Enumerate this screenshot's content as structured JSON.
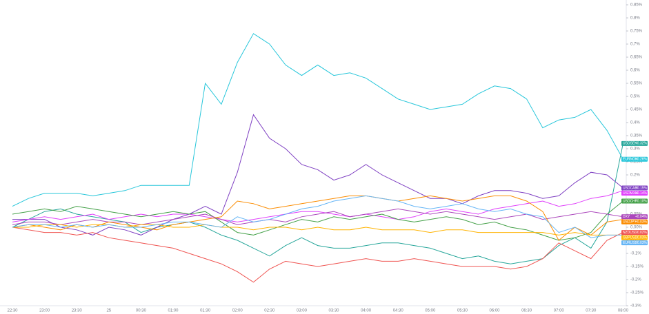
{
  "chart_data": {
    "type": "line",
    "categories": [
      "22:30",
      null,
      "23:00",
      null,
      "23:30",
      null,
      "25",
      null,
      "00:30",
      null,
      "01:00",
      null,
      "01:30",
      null,
      "02:00",
      null,
      "02:30",
      null,
      "03:00",
      null,
      "03:30",
      null,
      "04:00",
      null,
      "04:30",
      null,
      "05:00",
      null,
      "05:30",
      null,
      "06:00",
      null,
      "06:30",
      null,
      "07:00",
      null,
      "07:30",
      null,
      "08:00"
    ],
    "ylim": [
      -0.3,
      0.85
    ],
    "yticks": [
      {
        "value": 0.85,
        "label": "0.85%"
      },
      {
        "value": 0.8,
        "label": "0.8%"
      },
      {
        "value": 0.75,
        "label": "0.75%"
      },
      {
        "value": 0.7,
        "label": "0.7%"
      },
      {
        "value": 0.65,
        "label": "0.65%"
      },
      {
        "value": 0.6,
        "label": "0.6%"
      },
      {
        "value": 0.55,
        "label": "0.55%"
      },
      {
        "value": 0.5,
        "label": "0.5%"
      },
      {
        "value": 0.45,
        "label": "0.45%"
      },
      {
        "value": 0.4,
        "label": "0.4%"
      },
      {
        "value": 0.35,
        "label": "0.35%"
      },
      {
        "value": 0.3,
        "label": "0.3%"
      },
      {
        "value": 0.25,
        "label": "0.25%"
      },
      {
        "value": 0.2,
        "label": "0.2%"
      },
      {
        "value": 0.15,
        "label": "0.15%"
      },
      {
        "value": 0.1,
        "label": "0.1%"
      },
      {
        "value": 0.05,
        "label": "0.05%"
      },
      {
        "value": 0,
        "label": "0.00%"
      },
      {
        "value": -0.05,
        "label": "-0.05%"
      },
      {
        "value": -0.1,
        "label": "-0.1%"
      },
      {
        "value": -0.15,
        "label": "-0.15%"
      },
      {
        "value": -0.2,
        "label": "-0.2%"
      },
      {
        "value": -0.25,
        "label": "-0.25%"
      },
      {
        "value": -0.3,
        "label": "-0.3%"
      }
    ],
    "grid": false,
    "series": [
      {
        "name": "USDSEK",
        "color": "#26a69a",
        "values": [
          0.0,
          0.03,
          0.06,
          0.07,
          0.05,
          0.04,
          0.03,
          0.02,
          -0.02,
          0.0,
          0.01,
          0.02,
          0.0,
          -0.03,
          -0.05,
          -0.08,
          -0.11,
          -0.07,
          -0.04,
          -0.07,
          -0.08,
          -0.08,
          -0.07,
          -0.06,
          -0.06,
          -0.07,
          -0.08,
          -0.1,
          -0.12,
          -0.11,
          -0.13,
          -0.14,
          -0.13,
          -0.12,
          -0.07,
          -0.04,
          -0.08,
          0.02,
          0.32
        ],
        "value_labels": [
          null,
          null,
          null,
          null,
          null,
          null,
          null,
          null,
          null,
          null,
          null,
          null,
          null,
          null,
          null,
          null,
          null,
          null,
          null,
          null,
          null,
          null,
          null,
          null,
          null,
          null,
          null,
          null,
          null,
          null,
          null,
          null,
          null,
          null,
          null,
          null,
          null,
          null,
          "+0.32%"
        ]
      },
      {
        "name": "EURNOK",
        "color": "#26c6da",
        "values": [
          0.08,
          0.11,
          0.13,
          0.13,
          0.13,
          0.12,
          0.13,
          0.14,
          0.16,
          0.16,
          0.16,
          0.16,
          0.55,
          0.47,
          0.63,
          0.74,
          0.7,
          0.62,
          0.58,
          0.62,
          0.58,
          0.59,
          0.57,
          0.53,
          0.49,
          0.47,
          0.45,
          0.46,
          0.47,
          0.51,
          0.54,
          0.53,
          0.49,
          0.38,
          0.41,
          0.42,
          0.45,
          0.37,
          0.26
        ],
        "value_labels": [
          null,
          null,
          null,
          null,
          null,
          null,
          null,
          null,
          null,
          null,
          null,
          null,
          null,
          null,
          null,
          null,
          null,
          null,
          null,
          null,
          null,
          null,
          null,
          null,
          null,
          null,
          null,
          null,
          null,
          null,
          null,
          null,
          null,
          null,
          null,
          null,
          null,
          null,
          "+0.26%"
        ]
      },
      {
        "name": "USDCAD",
        "color": "#7e3fc2",
        "values": [
          0.03,
          0.03,
          0.03,
          0.0,
          -0.01,
          -0.03,
          0.0,
          -0.01,
          -0.03,
          0.0,
          0.03,
          0.05,
          0.08,
          0.05,
          0.21,
          0.43,
          0.34,
          0.3,
          0.24,
          0.22,
          0.18,
          0.2,
          0.24,
          0.2,
          0.17,
          0.14,
          0.11,
          0.11,
          0.09,
          0.12,
          0.14,
          0.14,
          0.13,
          0.11,
          0.12,
          0.17,
          0.21,
          0.2,
          0.15
        ],
        "value_labels": [
          null,
          null,
          null,
          null,
          null,
          null,
          null,
          null,
          null,
          null,
          null,
          null,
          null,
          null,
          null,
          null,
          null,
          null,
          null,
          null,
          null,
          null,
          null,
          null,
          null,
          null,
          null,
          null,
          null,
          null,
          null,
          null,
          null,
          null,
          null,
          null,
          null,
          null,
          "+0.15%"
        ]
      },
      {
        "name": "USDMXN",
        "color": "#e040fb",
        "values": [
          0.02,
          0.03,
          0.04,
          0.03,
          0.04,
          0.05,
          0.03,
          0.04,
          0.05,
          0.04,
          0.05,
          0.05,
          0.04,
          0.03,
          0.02,
          0.03,
          0.04,
          0.05,
          0.06,
          0.06,
          0.05,
          0.04,
          0.05,
          0.04,
          0.03,
          0.04,
          0.06,
          0.07,
          0.06,
          0.05,
          0.07,
          0.08,
          0.09,
          0.1,
          0.08,
          0.09,
          0.11,
          0.12,
          0.14
        ],
        "value_labels": [
          null,
          null,
          null,
          null,
          null,
          null,
          null,
          null,
          null,
          null,
          null,
          null,
          null,
          null,
          null,
          null,
          null,
          null,
          null,
          null,
          null,
          null,
          null,
          null,
          null,
          null,
          null,
          null,
          null,
          null,
          null,
          null,
          null,
          null,
          null,
          null,
          null,
          null,
          "+0.14%"
        ]
      },
      {
        "name": "USDCHF",
        "color": "#43a047",
        "values": [
          0.05,
          0.06,
          0.07,
          0.06,
          0.08,
          0.07,
          0.06,
          0.05,
          0.04,
          0.05,
          0.06,
          0.05,
          0.06,
          0.02,
          -0.02,
          -0.03,
          -0.01,
          0.01,
          0.03,
          0.02,
          0.04,
          0.03,
          0.04,
          0.05,
          0.03,
          0.02,
          0.03,
          0.04,
          0.03,
          0.01,
          0.02,
          0.0,
          -0.01,
          -0.03,
          -0.05,
          -0.04,
          -0.02,
          0.05,
          0.1
        ],
        "value_labels": [
          null,
          null,
          null,
          null,
          null,
          null,
          null,
          null,
          null,
          null,
          null,
          null,
          null,
          null,
          null,
          null,
          null,
          null,
          null,
          null,
          null,
          null,
          null,
          null,
          null,
          null,
          null,
          null,
          null,
          null,
          null,
          null,
          null,
          null,
          null,
          null,
          null,
          null,
          "+0.10%"
        ]
      },
      {
        "name": "DXY",
        "color": "#ab47bc",
        "values": [
          0.01,
          0.02,
          0.02,
          0.01,
          0.02,
          0.03,
          0.02,
          0.02,
          0.01,
          0.02,
          0.03,
          0.04,
          0.05,
          0.03,
          0.01,
          0.02,
          0.03,
          0.02,
          0.04,
          0.05,
          0.06,
          0.04,
          0.05,
          0.06,
          0.07,
          0.06,
          0.05,
          0.06,
          0.05,
          0.04,
          0.03,
          0.04,
          0.05,
          0.03,
          0.04,
          0.05,
          0.06,
          0.05,
          0.04
        ],
        "value_labels": [
          null,
          null,
          null,
          null,
          null,
          null,
          null,
          null,
          null,
          null,
          null,
          null,
          null,
          null,
          null,
          null,
          null,
          null,
          null,
          null,
          null,
          null,
          null,
          null,
          null,
          null,
          null,
          null,
          null,
          null,
          null,
          null,
          null,
          null,
          null,
          null,
          null,
          null,
          "+0.04%"
        ]
      },
      {
        "name": "USDJPY",
        "color": "#fb8c00",
        "values": [
          0.0,
          0.01,
          0.0,
          -0.01,
          0.01,
          0.0,
          0.02,
          0.01,
          0.0,
          -0.01,
          0.01,
          0.02,
          0.03,
          0.04,
          0.1,
          0.09,
          0.07,
          0.08,
          0.09,
          0.1,
          0.11,
          0.12,
          0.12,
          0.11,
          0.1,
          0.11,
          0.12,
          0.11,
          0.1,
          0.11,
          0.12,
          0.12,
          0.1,
          0.06,
          -0.05,
          0.0,
          -0.03,
          0.02,
          0.03
        ],
        "value_labels": [
          null,
          null,
          null,
          null,
          null,
          null,
          null,
          null,
          null,
          null,
          null,
          null,
          null,
          null,
          null,
          null,
          null,
          null,
          null,
          null,
          null,
          null,
          null,
          null,
          null,
          null,
          null,
          null,
          null,
          null,
          null,
          null,
          null,
          null,
          null,
          null,
          null,
          null,
          "+0.03%"
        ]
      },
      {
        "name": "NZDUSD",
        "color": "#ef5350",
        "values": [
          0.0,
          -0.01,
          -0.02,
          -0.02,
          -0.03,
          -0.02,
          -0.04,
          -0.05,
          -0.06,
          -0.07,
          -0.08,
          -0.1,
          -0.12,
          -0.14,
          -0.17,
          -0.21,
          -0.16,
          -0.13,
          -0.14,
          -0.15,
          -0.14,
          -0.13,
          -0.12,
          -0.13,
          -0.13,
          -0.12,
          -0.13,
          -0.14,
          -0.15,
          -0.15,
          -0.15,
          -0.16,
          -0.15,
          -0.12,
          -0.06,
          -0.09,
          -0.12,
          -0.05,
          -0.02
        ],
        "value_labels": [
          null,
          null,
          null,
          null,
          null,
          null,
          null,
          null,
          null,
          null,
          null,
          null,
          null,
          null,
          null,
          null,
          null,
          null,
          null,
          null,
          null,
          null,
          null,
          null,
          null,
          null,
          null,
          null,
          null,
          null,
          null,
          null,
          null,
          null,
          null,
          null,
          null,
          null,
          "-0.02%"
        ]
      },
      {
        "name": "GBPUSD",
        "color": "#ffb300",
        "values": [
          0.0,
          0.0,
          0.01,
          0.01,
          0.0,
          0.01,
          0.01,
          0.0,
          0.01,
          0.01,
          0.0,
          0.0,
          0.01,
          0.0,
          0.0,
          -0.01,
          0.0,
          0.0,
          -0.01,
          0.0,
          -0.01,
          -0.01,
          0.0,
          -0.01,
          -0.01,
          -0.01,
          -0.02,
          -0.01,
          -0.01,
          -0.02,
          -0.02,
          -0.02,
          -0.02,
          -0.02,
          -0.03,
          -0.02,
          -0.03,
          -0.03,
          -0.03
        ],
        "value_labels": [
          null,
          null,
          null,
          null,
          null,
          null,
          null,
          null,
          null,
          null,
          null,
          null,
          null,
          null,
          null,
          null,
          null,
          null,
          null,
          null,
          null,
          null,
          null,
          null,
          null,
          null,
          null,
          null,
          null,
          null,
          null,
          null,
          null,
          null,
          null,
          null,
          null,
          null,
          "-0.03%"
        ]
      },
      {
        "name": "EURUSD",
        "color": "#64b5f6",
        "values": [
          0.0,
          0.01,
          0.01,
          0.0,
          0.01,
          0.0,
          0.01,
          0.0,
          0.0,
          0.01,
          0.02,
          0.02,
          0.01,
          0.0,
          0.04,
          0.02,
          0.03,
          0.05,
          0.07,
          0.08,
          0.1,
          0.11,
          0.12,
          0.11,
          0.1,
          0.08,
          0.07,
          0.08,
          0.09,
          0.07,
          0.06,
          0.07,
          0.05,
          0.04,
          -0.02,
          0.0,
          -0.04,
          -0.03,
          -0.03
        ],
        "value_labels": [
          null,
          null,
          null,
          null,
          null,
          null,
          null,
          null,
          null,
          null,
          null,
          null,
          null,
          null,
          null,
          null,
          null,
          null,
          null,
          null,
          null,
          null,
          null,
          null,
          null,
          null,
          null,
          null,
          null,
          null,
          null,
          null,
          null,
          null,
          null,
          null,
          null,
          null,
          "-0.03%"
        ]
      }
    ]
  }
}
